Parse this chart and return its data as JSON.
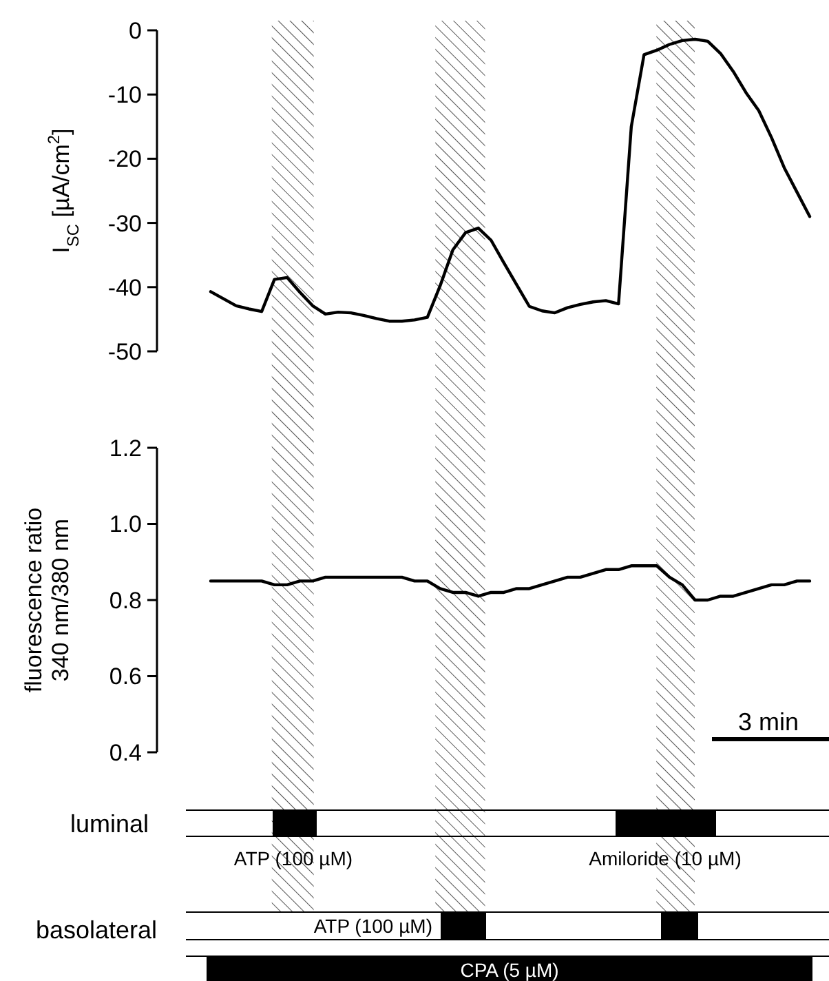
{
  "chart_data": [
    {
      "type": "line",
      "ylabel": "I$_{SC}$ [µA/cm$^{2}$]",
      "ylim": [
        -50,
        0
      ],
      "yticks": [
        -50,
        -40,
        -30,
        -20,
        -10,
        0
      ],
      "tick_labels": "y",
      "categories": [
        null,
        null,
        null,
        null,
        null,
        null,
        null,
        null,
        null,
        null,
        null,
        null,
        null,
        null,
        null,
        null,
        null,
        null,
        null,
        null,
        null,
        null,
        null,
        null,
        null,
        null,
        null,
        null,
        null,
        null,
        null,
        null,
        null,
        null,
        null,
        null,
        null,
        null,
        null,
        null,
        null,
        null,
        null,
        null,
        null,
        null,
        null,
        null
      ],
      "series": [
        {
          "color": "#000000",
          "values": [
            -40.7,
            -41.8,
            -42.9,
            -43.4,
            -43.8,
            -38.8,
            -38.5,
            -40.8,
            -42.9,
            -44.2,
            -43.9,
            -44.0,
            -44.4,
            -44.9,
            -45.3,
            -45.3,
            -45.1,
            -44.7,
            -39.8,
            -34.2,
            -31.5,
            -30.8,
            -32.7,
            -36.2,
            -39.6,
            -43.0,
            -43.7,
            -44.0,
            -43.2,
            -42.7,
            -42.3,
            -42.1,
            -42.6,
            -15.0,
            -3.8,
            -3.1,
            -2.2,
            -1.6,
            -1.4,
            -1.7,
            -3.6,
            -6.4,
            -9.7,
            -12.5,
            -16.7,
            -21.4,
            -25.2,
            -29.0
          ]
        }
      ]
    },
    {
      "type": "line",
      "ylabel": "fluorescence ratio\n340 nm/380 nm",
      "ylim": [
        0.4,
        1.2
      ],
      "yticks": [
        {
          "value": 0.4,
          "label": "0.4"
        },
        {
          "value": 0.6,
          "label": "0.6"
        },
        {
          "value": 0.8,
          "label": "0.8"
        },
        {
          "value": 1.0,
          "label": "1.0"
        },
        {
          "value": 1.2,
          "label": "1.2"
        }
      ],
      "tick_labels": "y",
      "categories": [
        null,
        null,
        null,
        null,
        null,
        null,
        null,
        null,
        null,
        null,
        null,
        null,
        null,
        null,
        null,
        null,
        null,
        null,
        null,
        null,
        null,
        null,
        null,
        null,
        null,
        null,
        null,
        null,
        null,
        null,
        null,
        null,
        null,
        null,
        null,
        null,
        null,
        null,
        null,
        null,
        null,
        null,
        null,
        null,
        null,
        null,
        null,
        null
      ],
      "series": [
        {
          "color": "#000000",
          "values": [
            0.85,
            0.85,
            0.85,
            0.85,
            0.85,
            0.84,
            0.84,
            0.85,
            0.85,
            0.86,
            0.86,
            0.86,
            0.86,
            0.86,
            0.86,
            0.86,
            0.85,
            0.85,
            0.83,
            0.82,
            0.82,
            0.81,
            0.82,
            0.82,
            0.83,
            0.83,
            0.84,
            0.85,
            0.86,
            0.86,
            0.87,
            0.88,
            0.88,
            0.89,
            0.89,
            0.89,
            0.86,
            0.84,
            0.8,
            0.8,
            0.81,
            0.81,
            0.82,
            0.83,
            0.84,
            0.84,
            0.85,
            0.85
          ]
        }
      ],
      "annotations": [
        "3 min",
        "luminal",
        "basolateral",
        "ATP (100 µM)",
        "Amiloride (10 µM)",
        "ATP (100 µM)",
        "CPA (5 µM)"
      ]
    }
  ]
}
